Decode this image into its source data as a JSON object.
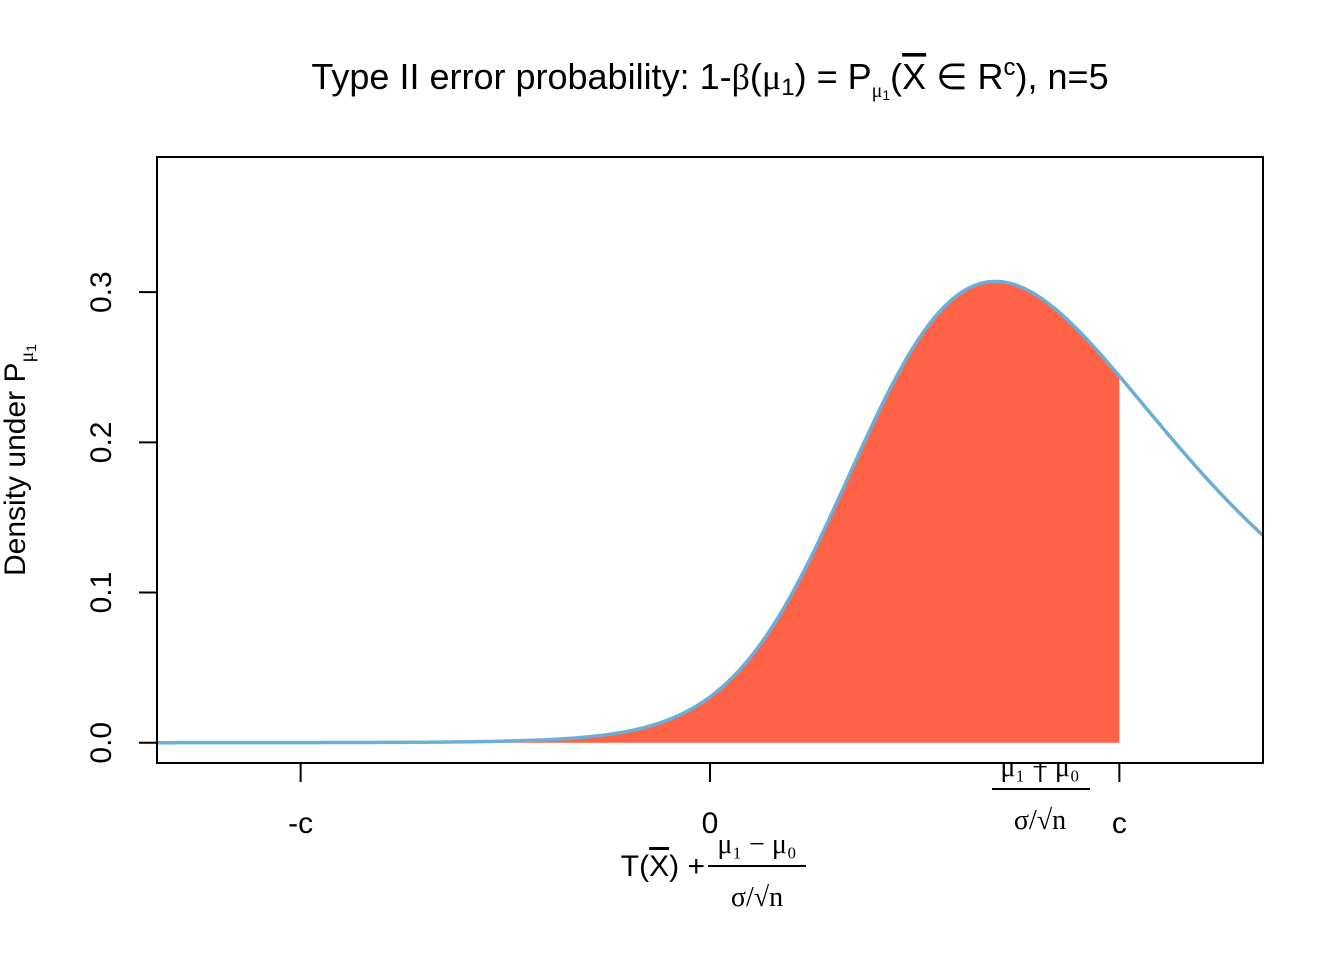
{
  "chart_data": {
    "type": "area",
    "title_parts": {
      "prefix": "Type II error probability: 1-",
      "beta": "β",
      "open_paren": "(",
      "mu": "μ",
      "mu_sub": "1",
      "close_eq": ") = P",
      "sub_mu": "μ",
      "sub_1": "1",
      "paren_x": "(",
      "xbar": "X",
      "in": " ∈ R",
      "sup_c": "c",
      "suffix": "), n=5"
    },
    "ylabel_parts": {
      "text": "Density under P",
      "sub_mu": "μ",
      "sub_1": "1"
    },
    "xlabel_parts": {
      "lhs": "T(",
      "xbar": "X",
      "rhs": ") +",
      "numerator": "μ₁ − μ₀",
      "denominator": "σ/√n"
    },
    "x_ticks": [
      {
        "value": -2.776,
        "label": "-c"
      },
      {
        "value": 0,
        "label": "0"
      },
      {
        "value": 2.776,
        "label": "c"
      }
    ],
    "extra_tick": {
      "value": 2.24,
      "numerator": "μ₁ − μ₀",
      "denominator": "σ/√n"
    },
    "y_ticks": [
      {
        "value": 0.0,
        "label": "0.0"
      },
      {
        "value": 0.1,
        "label": "0.1"
      },
      {
        "value": 0.2,
        "label": "0.2"
      },
      {
        "value": 0.3,
        "label": "0.3"
      }
    ],
    "xlim": [
      -3.75,
      3.75
    ],
    "ylim": [
      -0.0135,
      0.39
    ],
    "distribution": {
      "family": "noncentral t",
      "df": 4,
      "ncp": 2.24
    },
    "shaded_region": {
      "from": -2.776,
      "to": 2.776
    },
    "colors": {
      "curve": "#6BAED6",
      "fill": "#FF6347",
      "axis": "#000000"
    }
  }
}
